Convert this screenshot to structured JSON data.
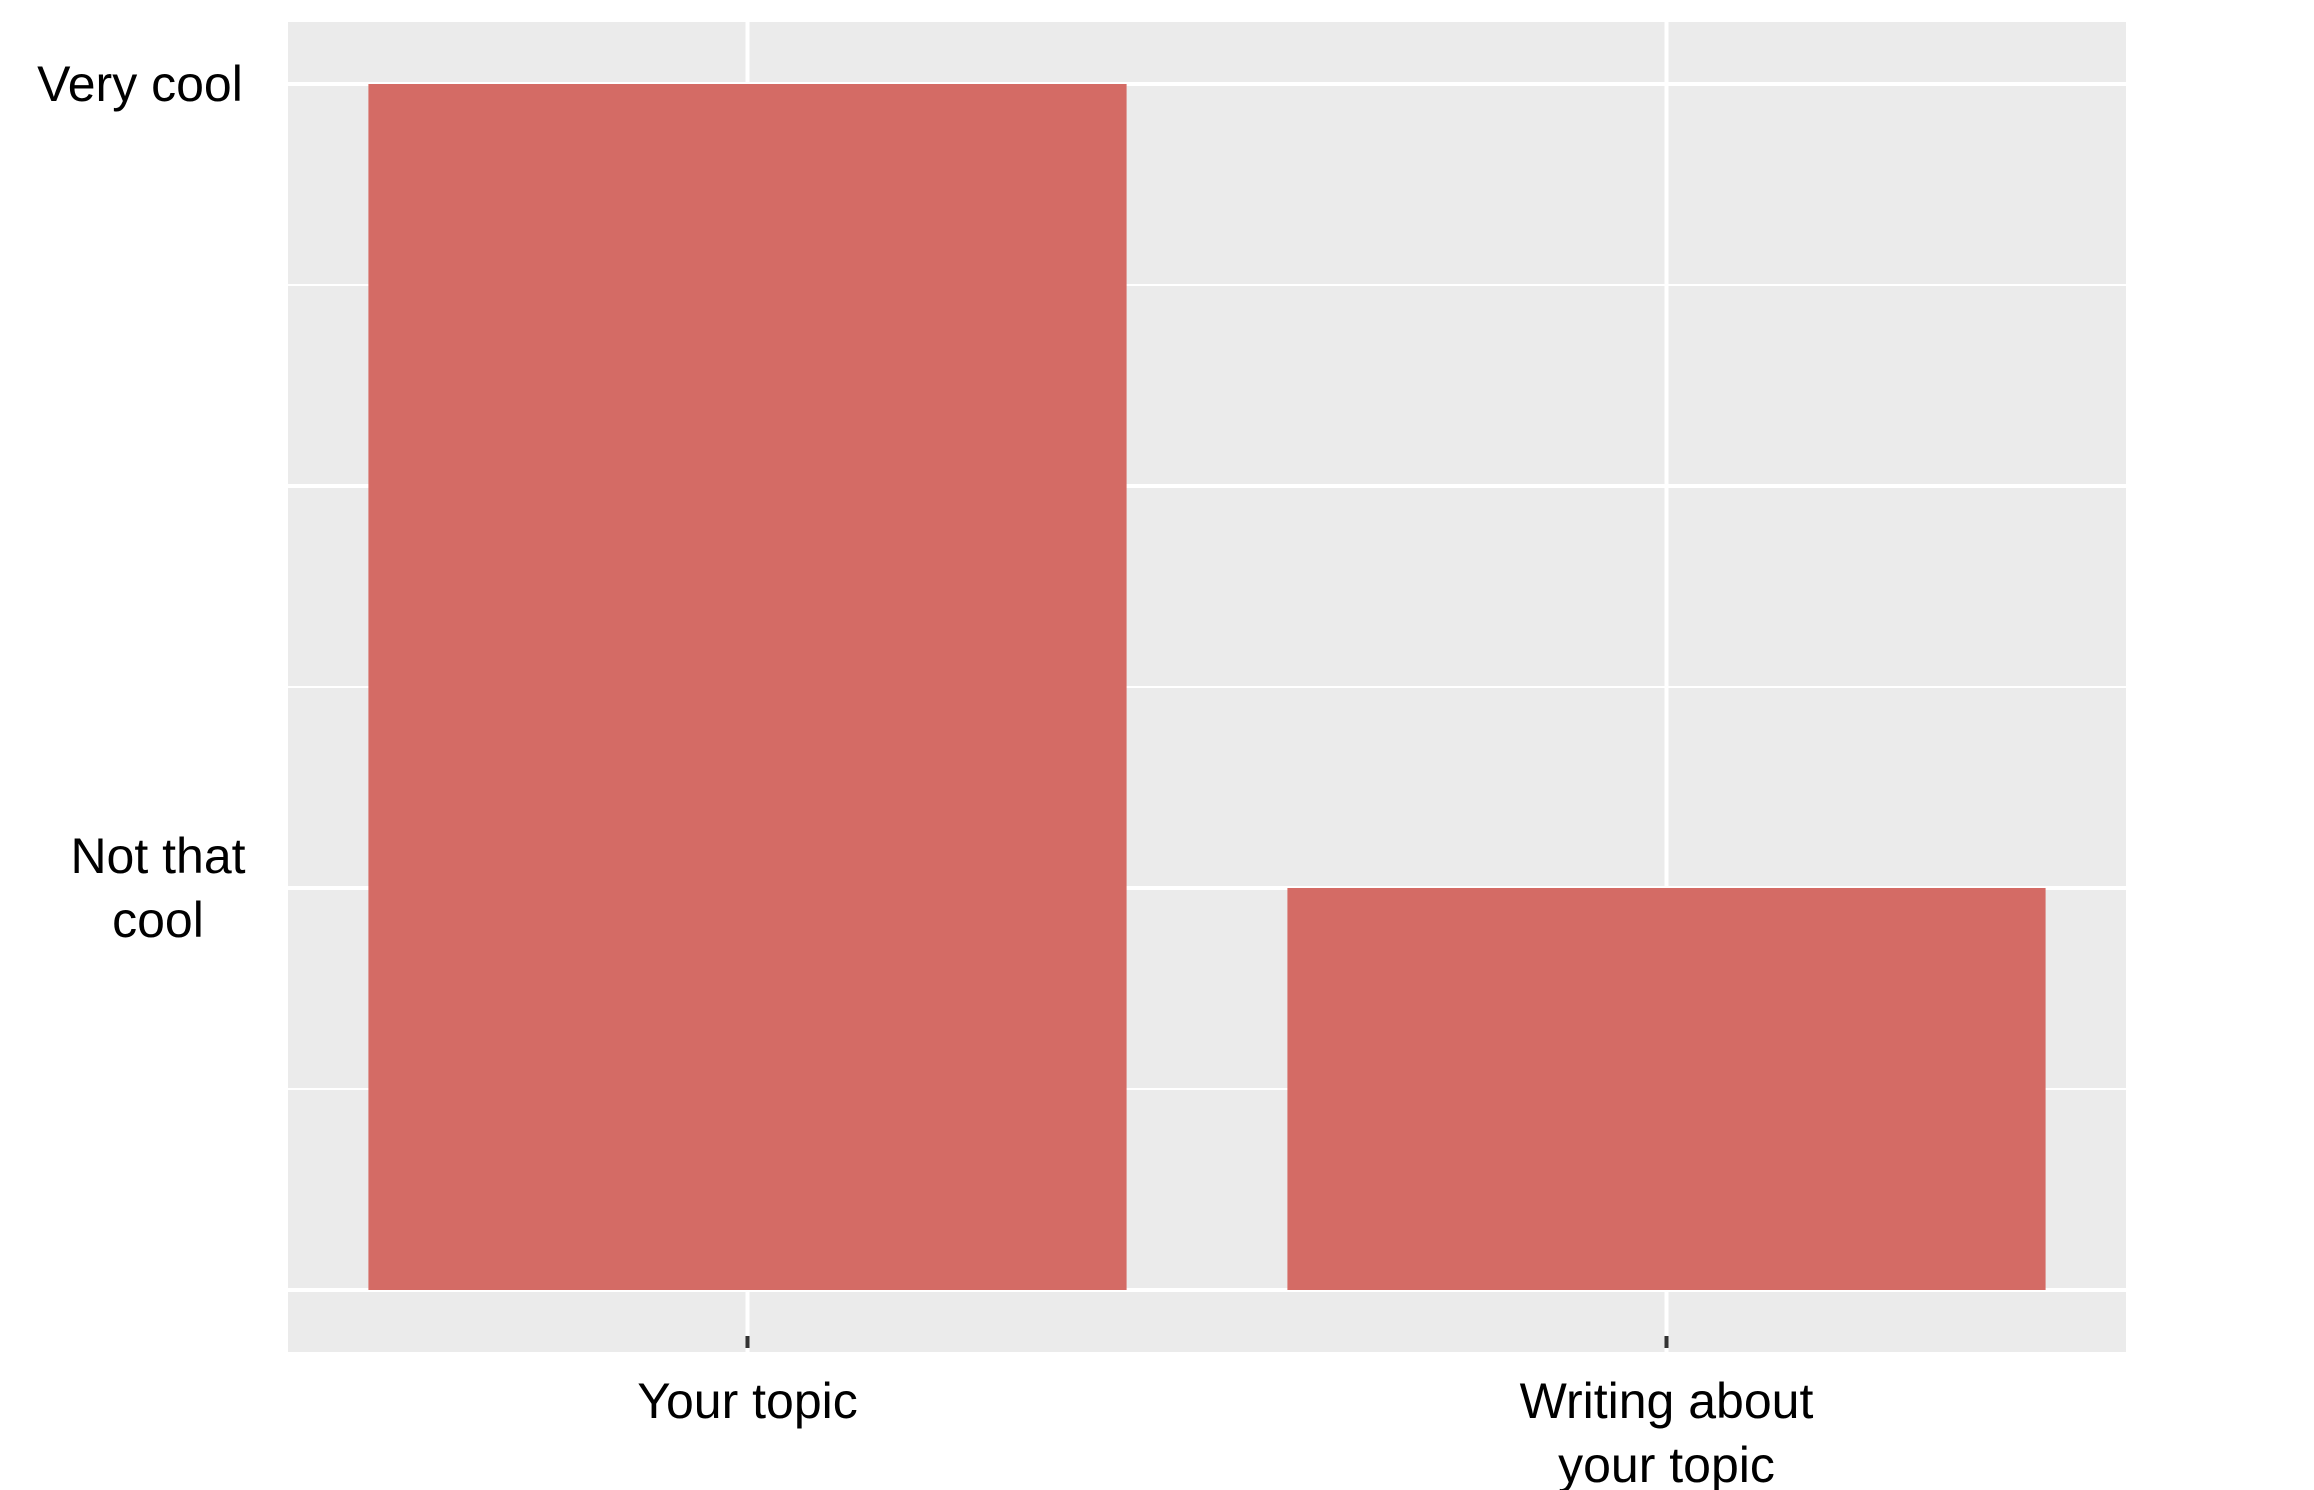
{
  "chart_data": {
    "type": "bar",
    "categories": [
      "Your topic",
      "Writing about your topic"
    ],
    "category_label_lines": [
      [
        "Your topic"
      ],
      [
        "Writing about",
        "your topic"
      ]
    ],
    "values": [
      3,
      1
    ],
    "ylim": [
      0,
      3
    ],
    "y_ticks": [
      {
        "value": 3,
        "label_lines": [
          "Very cool"
        ]
      },
      {
        "value": 1,
        "label_lines": [
          "Not that",
          "cool"
        ]
      }
    ],
    "title": "",
    "xlabel": "",
    "ylabel": "",
    "grid": true,
    "legend": "none",
    "colors": {
      "bar": "#d46b65",
      "panel": "#ebebeb",
      "grid": "#ffffff",
      "tick": "#333333"
    }
  }
}
